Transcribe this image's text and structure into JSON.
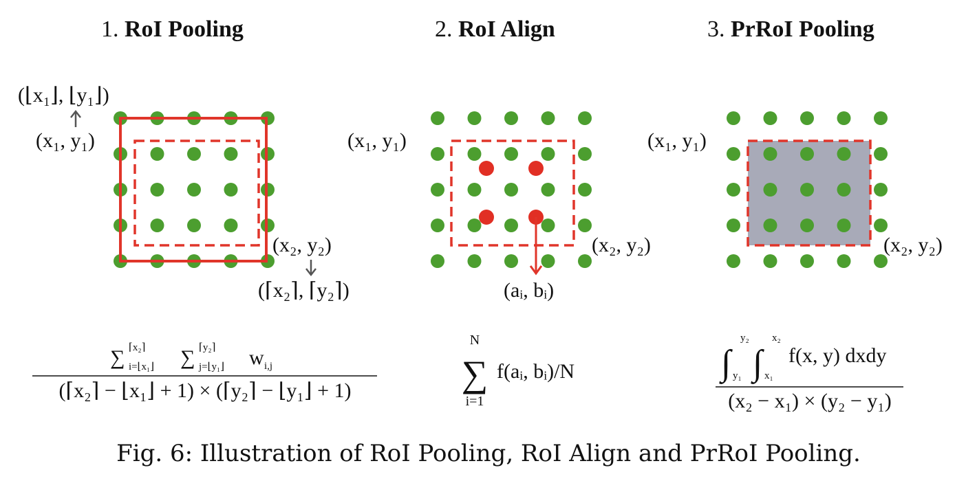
{
  "colors": {
    "dot_green": "#4c9e2f",
    "dot_red": "#e12f24",
    "roi_red": "#e0352a",
    "arrow_gray": "#555555",
    "integral_fill": "#a8aab8"
  },
  "panels": [
    {
      "number": "1.",
      "name": "RoI Pooling",
      "labels": {
        "floor_corner": "(⌊x₁⌋, ⌊y₁⌋)",
        "top_left": "(x₁, y₁)",
        "bottom_right": "(x₂, y₂)",
        "ceil_corner": "(⌈x₂⌉, ⌈y₂⌉)"
      },
      "formula": {
        "numerator": "∑ ∑ w",
        "sum1_upper": "⌈x₂⌉",
        "sum1_lower": "i=⌊x₁⌋",
        "sum2_upper": "⌈y₂⌉",
        "sum2_lower": "j=⌊y₁⌋",
        "weight_sub": "i,j",
        "denominator": "(⌈x₂⌉ − ⌊x₁⌋ + 1) × (⌈y₂⌉ − ⌊y₁⌋ + 1)"
      }
    },
    {
      "number": "2.",
      "name": "RoI Align",
      "labels": {
        "top_left": "(x₁, y₁)",
        "bottom_right": "(x₂, y₂)",
        "sample_point": "(aᵢ, bᵢ)"
      },
      "formula": {
        "sum_upper": "N",
        "sum_lower": "i=1",
        "body": "f(aᵢ, bᵢ)/N"
      }
    },
    {
      "number": "3.",
      "name": "PrRoI Pooling",
      "labels": {
        "top_left": "(x₁, y₁)",
        "bottom_right": "(x₂, y₂)"
      },
      "formula": {
        "int1_upper": "y₂",
        "int1_lower": "y₁",
        "int2_upper": "x₂",
        "int2_lower": "x₁",
        "integrand": "f(x, y) dxdy",
        "denominator": "(x₂ − x₁) × (y₂ − y₁)"
      }
    }
  ],
  "caption": "Fig. 6: Illustration of RoI Pooling, RoI Align and PrRoI Pooling."
}
